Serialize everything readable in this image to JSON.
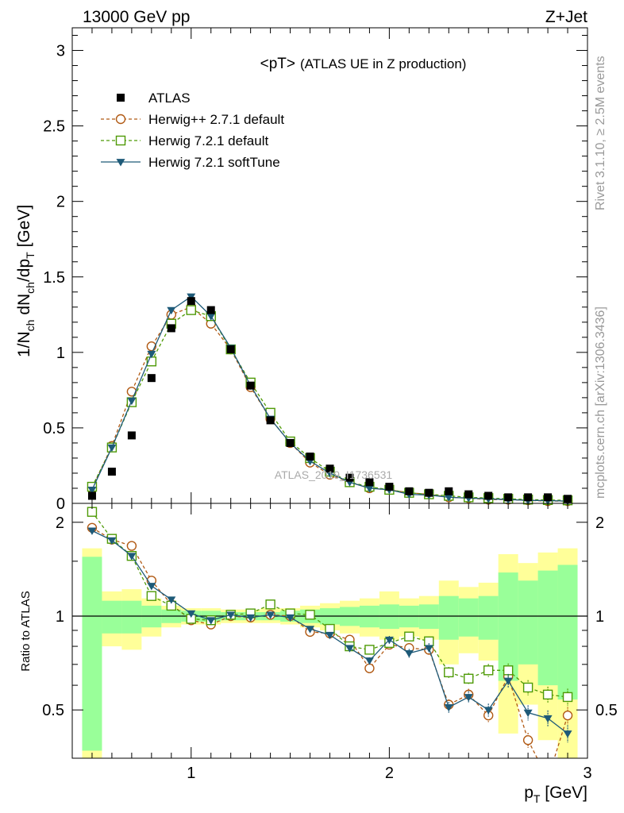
{
  "header": {
    "energy": "13000 GeV pp",
    "process": "Z+Jet"
  },
  "sidebar": {
    "rivet": "Rivet 3.1.10, ≥ 2.5M events",
    "site": "mcplots.cern.ch [arXiv:1306.3436]"
  },
  "watermark": "ATLAS_2019_I1736531",
  "colors": {
    "atlas": "#000000",
    "herwigpp": "#b15a14",
    "herwig72": "#4e9a06",
    "softtune": "#1e5a78",
    "band_outer": "#ffff99",
    "band_inner": "#99ff99"
  },
  "chart_data": [
    {
      "type": "scatter",
      "title_main": "<pT>",
      "title_sub": "(ATLAS UE in Z production)",
      "ylabel": "1/N_ch dN_ch/dp_T [GeV]",
      "xlim": [
        0.4,
        3.0
      ],
      "ylim": [
        0,
        3.15
      ],
      "y_ticks": [
        "0",
        "0.5",
        "1",
        "1.5",
        "2",
        "2.5",
        "3"
      ],
      "x": [
        0.5,
        0.6,
        0.7,
        0.8,
        0.9,
        1.0,
        1.1,
        1.2,
        1.3,
        1.4,
        1.5,
        1.6,
        1.7,
        1.8,
        1.9,
        2.0,
        2.1,
        2.2,
        2.3,
        2.4,
        2.5,
        2.6,
        2.7,
        2.8,
        2.9
      ],
      "series": [
        {
          "name": "ATLAS",
          "marker": "filled-square",
          "values": [
            0.05,
            0.21,
            0.45,
            0.83,
            1.16,
            1.34,
            1.28,
            1.02,
            0.78,
            0.55,
            0.4,
            0.31,
            0.23,
            0.17,
            0.14,
            0.11,
            0.08,
            0.07,
            0.08,
            0.06,
            0.05,
            0.04,
            0.04,
            0.04,
            0.03
          ]
        },
        {
          "name": "Herwig++ 2.7.1 default",
          "marker": "open-circle",
          "values": [
            0.1,
            0.38,
            0.74,
            1.04,
            1.25,
            1.3,
            1.19,
            1.02,
            0.77,
            0.56,
            0.4,
            0.27,
            0.19,
            0.14,
            0.1,
            0.09,
            0.07,
            0.06,
            0.04,
            0.035,
            0.025,
            0.025,
            0.02,
            0.015,
            0.015
          ]
        },
        {
          "name": "Herwig 7.2.1 default",
          "marker": "open-square",
          "values": [
            0.11,
            0.37,
            0.67,
            0.94,
            1.19,
            1.28,
            1.24,
            1.02,
            0.8,
            0.6,
            0.41,
            0.3,
            0.21,
            0.14,
            0.11,
            0.09,
            0.07,
            0.06,
            0.05,
            0.04,
            0.035,
            0.03,
            0.025,
            0.022,
            0.02
          ]
        },
        {
          "name": "Herwig 7.2.1 softTune",
          "marker": "filled-triangle-down",
          "values": [
            0.09,
            0.37,
            0.68,
            0.99,
            1.28,
            1.37,
            1.24,
            1.03,
            0.78,
            0.56,
            0.4,
            0.28,
            0.2,
            0.14,
            0.1,
            0.09,
            0.06,
            0.055,
            0.04,
            0.035,
            0.03,
            0.025,
            0.02,
            0.018,
            0.015
          ]
        }
      ]
    },
    {
      "type": "scatter",
      "ylabel": "Ratio to ATLAS",
      "xlabel": "p_T [GeV]",
      "xlim": [
        0.4,
        3.0
      ],
      "ylim": [
        0.35,
        2.3
      ],
      "x_ticks": [
        "1",
        "2",
        "3"
      ],
      "y_ticks": [
        "0.5",
        "1",
        "2"
      ],
      "bands": {
        "x_low": [
          0.45,
          0.55,
          0.65,
          0.75,
          0.85,
          0.95,
          1.05,
          1.15,
          1.25,
          1.35,
          1.45,
          1.55,
          1.65,
          1.75,
          1.85,
          1.95,
          2.05,
          2.15,
          2.25,
          2.35,
          2.45,
          2.55,
          2.65,
          2.75,
          2.85
        ],
        "x_high": [
          0.55,
          0.65,
          0.75,
          0.85,
          0.95,
          1.05,
          1.15,
          1.25,
          1.35,
          1.45,
          1.55,
          1.65,
          1.75,
          1.85,
          1.95,
          2.05,
          2.15,
          2.25,
          2.35,
          2.45,
          2.55,
          2.65,
          2.75,
          2.85,
          2.95
        ],
        "outer_lo": [
          0.35,
          0.8,
          0.78,
          0.86,
          0.92,
          0.94,
          0.94,
          0.95,
          0.95,
          0.95,
          0.94,
          0.92,
          0.9,
          0.88,
          0.86,
          0.84,
          0.86,
          0.84,
          0.7,
          0.76,
          0.72,
          0.42,
          0.52,
          0.4,
          0.35
        ],
        "outer_hi": [
          1.65,
          1.2,
          1.22,
          1.14,
          1.08,
          1.06,
          1.06,
          1.05,
          1.05,
          1.06,
          1.06,
          1.08,
          1.1,
          1.12,
          1.14,
          1.2,
          1.14,
          1.16,
          1.3,
          1.24,
          1.28,
          1.58,
          1.48,
          1.6,
          1.65
        ],
        "inner_lo": [
          0.37,
          0.88,
          0.88,
          0.92,
          0.95,
          0.96,
          0.96,
          0.97,
          0.97,
          0.97,
          0.96,
          0.95,
          0.94,
          0.93,
          0.92,
          0.91,
          0.92,
          0.91,
          0.84,
          0.86,
          0.84,
          0.62,
          0.7,
          0.6,
          0.54
        ],
        "inner_hi": [
          1.55,
          1.12,
          1.12,
          1.08,
          1.05,
          1.04,
          1.04,
          1.03,
          1.03,
          1.03,
          1.04,
          1.05,
          1.06,
          1.07,
          1.08,
          1.09,
          1.08,
          1.09,
          1.16,
          1.14,
          1.16,
          1.38,
          1.3,
          1.4,
          1.46
        ]
      },
      "x": [
        0.5,
        0.6,
        0.7,
        0.8,
        0.9,
        1.0,
        1.1,
        1.2,
        1.3,
        1.4,
        1.5,
        1.6,
        1.7,
        1.8,
        1.9,
        2.0,
        2.1,
        2.2,
        2.3,
        2.4,
        2.5,
        2.6,
        2.7,
        2.8,
        2.9
      ],
      "series": [
        {
          "name": "Herwig++ 2.7.1 default",
          "marker": "open-circle",
          "values": [
            1.92,
            1.76,
            1.68,
            1.3,
            1.09,
            0.97,
            0.94,
            1.0,
            0.99,
            1.01,
            1.0,
            0.89,
            0.88,
            0.84,
            0.68,
            0.81,
            0.79,
            0.78,
            0.52,
            0.56,
            0.48,
            0.64,
            0.4,
            0.3,
            0.48
          ]
        },
        {
          "name": "Herwig 7.2.1 default",
          "marker": "open-square",
          "values": [
            2.16,
            1.77,
            1.56,
            1.16,
            1.08,
            0.98,
            0.97,
            1.01,
            1.02,
            1.09,
            1.02,
            1.01,
            0.91,
            0.8,
            0.78,
            0.82,
            0.86,
            0.83,
            0.66,
            0.63,
            0.67,
            0.67,
            0.59,
            0.56,
            0.55
          ]
        },
        {
          "name": "Herwig 7.2.1 softTune",
          "marker": "filled-triangle-down",
          "values": [
            1.88,
            1.75,
            1.56,
            1.25,
            1.13,
            1.02,
            0.97,
            1.01,
            0.99,
            1.01,
            0.99,
            0.91,
            0.87,
            0.79,
            0.72,
            0.84,
            0.76,
            0.79,
            0.51,
            0.55,
            0.5,
            0.62,
            0.49,
            0.47,
            0.42
          ]
        }
      ]
    }
  ]
}
